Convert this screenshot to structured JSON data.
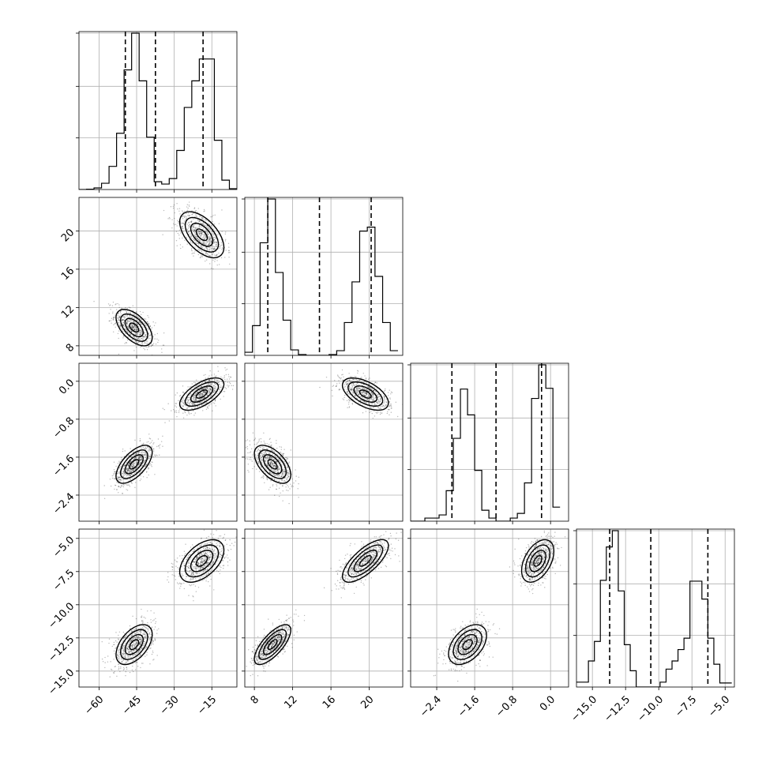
{
  "chart_data": {
    "type": "corner",
    "grid": true,
    "colors": {
      "line": "#000000",
      "grid": "#b0b0b0",
      "points": "#000000",
      "fill_outer": "#ffffff",
      "fill_mid": "#d0d0d0",
      "fill_inner": "#808080",
      "fill_core": "#303030"
    },
    "params": [
      {
        "range": [
          -68,
          -5
        ],
        "ticks": [
          -60,
          -45,
          -30,
          -15
        ],
        "tick_labels": [
          "−60",
          "−45",
          "−30",
          "−15"
        ],
        "quantiles": [
          -49.5,
          -37.5,
          -18.5
        ],
        "hist": {
          "edges": [
            -68,
            -65,
            -62,
            -59,
            -56,
            -53,
            -50,
            -47,
            -44,
            -41,
            -38,
            -35,
            -32,
            -29,
            -26,
            -23,
            -20,
            -17,
            -14,
            -11,
            -8,
            -5
          ],
          "counts": [
            0,
            2,
            10,
            40,
            148,
            360,
            765,
            1000,
            695,
            335,
            50,
            35,
            70,
            250,
            525,
            695,
            835,
            835,
            315,
            60,
            5
          ]
        },
        "modes": [
          {
            "mean": -46,
            "sd": 3.6,
            "weight": 0.5
          },
          {
            "mean": -19,
            "sd": 4.4,
            "weight": 0.5
          }
        ]
      },
      {
        "range": [
          7,
          23.5
        ],
        "ticks": [
          8,
          12,
          16,
          20
        ],
        "tick_labels": [
          "8",
          "12",
          "16",
          "20"
        ],
        "quantiles": [
          9.4,
          14.8,
          20.2
        ],
        "hist": {
          "edges": [
            7,
            7.8,
            8.6,
            9.4,
            10.2,
            11.0,
            11.8,
            12.6,
            13.4,
            14.2,
            15.0,
            15.8,
            16.6,
            17.4,
            18.2,
            19.0,
            19.8,
            20.6,
            21.4,
            22.2,
            23.0
          ],
          "counts": [
            20,
            190,
            720,
            1000,
            530,
            225,
            35,
            5,
            0,
            0,
            0,
            5,
            30,
            210,
            470,
            795,
            820,
            505,
            210,
            30
          ]
        },
        "modes": [
          {
            "mean": 9.9,
            "sd": 0.95,
            "weight": 0.5
          },
          {
            "mean": 19.6,
            "sd": 1.2,
            "weight": 0.5
          }
        ]
      },
      {
        "range": [
          -2.95,
          0.38
        ],
        "ticks": [
          -2.4,
          -1.6,
          -0.8,
          0.0
        ],
        "tick_labels": [
          "−2.4",
          "−1.6",
          "−0.8",
          "0.0"
        ],
        "quantiles": [
          -2.08,
          -1.15,
          -0.19
        ],
        "hist": {
          "edges": [
            -2.95,
            -2.8,
            -2.65,
            -2.5,
            -2.35,
            -2.2,
            -2.05,
            -1.9,
            -1.75,
            -1.6,
            -1.45,
            -1.3,
            -1.15,
            -1.0,
            -0.85,
            -0.7,
            -0.55,
            -0.4,
            -0.25,
            -0.1,
            0.05,
            0.2
          ],
          "counts": [
            0,
            0,
            20,
            20,
            40,
            195,
            530,
            845,
            680,
            325,
            70,
            20,
            0,
            0,
            20,
            50,
            245,
            785,
            1000,
            850,
            90
          ]
        },
        "modes": [
          {
            "mean": -1.75,
            "sd": 0.2,
            "weight": 0.5
          },
          {
            "mean": -0.27,
            "sd": 0.17,
            "weight": 0.5
          }
        ]
      },
      {
        "range": [
          -16.2,
          -4.3
        ],
        "ticks": [
          -15.0,
          -12.5,
          -10.0,
          -7.5,
          -5.0
        ],
        "tick_labels": [
          "−15.0",
          "−12.5",
          "−10.0",
          "−7.5",
          "−5.0"
        ],
        "quantiles": [
          -13.7,
          -10.6,
          -6.3
        ],
        "hist": {
          "edges": [
            -16.2,
            -15.75,
            -15.3,
            -14.85,
            -14.4,
            -13.95,
            -13.5,
            -13.05,
            -12.6,
            -12.15,
            -11.7,
            -11.25,
            -10.8,
            -10.35,
            -9.9,
            -9.45,
            -9.0,
            -8.55,
            -8.1,
            -7.65,
            -7.2,
            -6.75,
            -6.3,
            -5.85,
            -5.4,
            -4.95,
            -4.5
          ],
          "counts": [
            30,
            30,
            160,
            280,
            655,
            860,
            960,
            590,
            260,
            100,
            0,
            0,
            0,
            0,
            30,
            110,
            160,
            230,
            300,
            650,
            650,
            540,
            300,
            140,
            25,
            25
          ]
        },
        "modes": [
          {
            "mean": -13.0,
            "sd": 0.75,
            "weight": 0.5
          },
          {
            "mean": -6.7,
            "sd": 0.8,
            "weight": 0.5
          }
        ]
      }
    ],
    "correlations": [
      [
        1.0,
        -0.55,
        0.62,
        0.5
      ],
      [
        -0.55,
        1.0,
        -0.55,
        0.72
      ],
      [
        0.62,
        -0.55,
        1.0,
        0.45
      ],
      [
        0.5,
        0.72,
        0.45,
        1.0
      ]
    ]
  }
}
